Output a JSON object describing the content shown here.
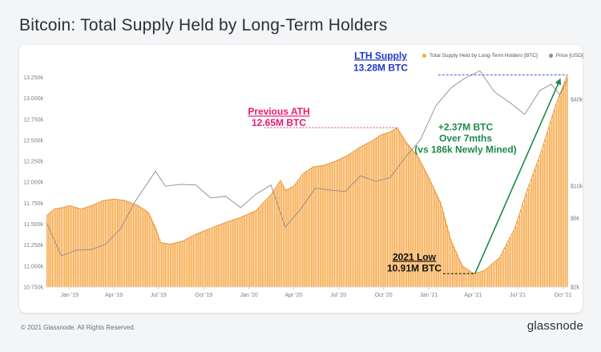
{
  "title": "Bitcoin: Total Supply Held by Long-Term Holders",
  "legend": {
    "supply_label": "Total Supply Held by Long-Term Holders [BTC]",
    "price_label": "Price [USD]"
  },
  "colors": {
    "supply": "#f7a94a",
    "supply_dark": "#e9953a",
    "price": "#8c8c8c",
    "ath": "#e8196e",
    "lth": "#1f39c6",
    "gain": "#1b8a4a",
    "low": "#111111"
  },
  "annotations": {
    "lth_title": "LTH Supply",
    "lth_value": "13.28M BTC",
    "ath_title": "Previous ATH",
    "ath_value": "12.65M BTC",
    "gain_line1": "+2.37M BTC",
    "gain_line2": "Over 7mths",
    "gain_line3": "(vs 186k Newly Mined)",
    "low_title": "2021 Low",
    "low_value": "10.91M BTC"
  },
  "footer": {
    "copyright": "© 2021 Glassnode. All Rights Reserved.",
    "brand": "glassnode"
  },
  "chart_data": {
    "type": "area",
    "title": "Bitcoin: Total Supply Held by Long-Term Holders",
    "x_range": [
      "2018-11-15",
      "2021-10-10"
    ],
    "x_ticks": [
      "Jan '19",
      "Apr '19",
      "Jul '19",
      "Oct '19",
      "Jan '20",
      "Apr '20",
      "Jul '20",
      "Oct '20",
      "Jan '21",
      "Apr '21",
      "Jul '21",
      "Oct '21"
    ],
    "y_left": {
      "label": "",
      "range": [
        10750000,
        13350000
      ],
      "ticks": [
        "10.750k",
        "11.000k",
        "11.250k",
        "11.500k",
        "11.750k",
        "12.000k",
        "12.250k",
        "12.500k",
        "12.750k",
        "13.000k",
        "13.250k"
      ]
    },
    "y_right": {
      "label": "",
      "scale": "log",
      "range": [
        2000,
        65000
      ],
      "ticks": [
        "$2k",
        "$6k",
        "$10k",
        "$40k"
      ]
    },
    "grid": false,
    "series": [
      {
        "name": "Total Supply Held by Long-Term Holders [BTC]",
        "axis": "left",
        "points": [
          [
            "2018-11-15",
            11600000
          ],
          [
            "2018-12-01",
            11680000
          ],
          [
            "2018-12-20",
            11700000
          ],
          [
            "2019-01-01",
            11720000
          ],
          [
            "2019-01-25",
            11680000
          ],
          [
            "2019-02-15",
            11720000
          ],
          [
            "2019-03-10",
            11780000
          ],
          [
            "2019-04-01",
            11800000
          ],
          [
            "2019-04-25",
            11780000
          ],
          [
            "2019-05-20",
            11720000
          ],
          [
            "2019-06-10",
            11640000
          ],
          [
            "2019-06-25",
            11450000
          ],
          [
            "2019-07-05",
            11280000
          ],
          [
            "2019-07-25",
            11260000
          ],
          [
            "2019-08-20",
            11300000
          ],
          [
            "2019-09-15",
            11380000
          ],
          [
            "2019-10-15",
            11450000
          ],
          [
            "2019-11-15",
            11520000
          ],
          [
            "2019-12-15",
            11580000
          ],
          [
            "2020-01-15",
            11660000
          ],
          [
            "2020-02-15",
            11850000
          ],
          [
            "2020-03-05",
            12020000
          ],
          [
            "2020-03-15",
            11900000
          ],
          [
            "2020-04-01",
            11950000
          ],
          [
            "2020-04-20",
            12100000
          ],
          [
            "2020-05-10",
            12180000
          ],
          [
            "2020-06-01",
            12200000
          ],
          [
            "2020-06-25",
            12250000
          ],
          [
            "2020-07-20",
            12320000
          ],
          [
            "2020-08-15",
            12420000
          ],
          [
            "2020-09-10",
            12500000
          ],
          [
            "2020-09-25",
            12560000
          ],
          [
            "2020-10-15",
            12600000
          ],
          [
            "2020-10-28",
            12650000
          ],
          [
            "2020-11-15",
            12480000
          ],
          [
            "2020-12-10",
            12300000
          ],
          [
            "2021-01-01",
            12050000
          ],
          [
            "2021-01-25",
            11750000
          ],
          [
            "2021-02-15",
            11300000
          ],
          [
            "2021-03-10",
            11000000
          ],
          [
            "2021-03-28",
            10930000
          ],
          [
            "2021-04-05",
            10910000
          ],
          [
            "2021-04-25",
            10950000
          ],
          [
            "2021-05-25",
            11100000
          ],
          [
            "2021-06-25",
            11450000
          ],
          [
            "2021-07-20",
            11900000
          ],
          [
            "2021-08-20",
            12400000
          ],
          [
            "2021-09-15",
            12900000
          ],
          [
            "2021-10-10",
            13280000
          ]
        ]
      },
      {
        "name": "Price [USD]",
        "axis": "right",
        "points": [
          [
            "2018-11-15",
            5600
          ],
          [
            "2018-12-15",
            3300
          ],
          [
            "2019-01-15",
            3600
          ],
          [
            "2019-02-15",
            3650
          ],
          [
            "2019-03-15",
            3950
          ],
          [
            "2019-04-15",
            5100
          ],
          [
            "2019-05-15",
            7900
          ],
          [
            "2019-06-25",
            12700
          ],
          [
            "2019-07-15",
            10000
          ],
          [
            "2019-08-15",
            10300
          ],
          [
            "2019-09-15",
            10200
          ],
          [
            "2019-10-15",
            8300
          ],
          [
            "2019-11-15",
            8500
          ],
          [
            "2019-12-15",
            7100
          ],
          [
            "2020-01-15",
            8800
          ],
          [
            "2020-02-15",
            10200
          ],
          [
            "2020-03-15",
            5200
          ],
          [
            "2020-04-15",
            6900
          ],
          [
            "2020-05-15",
            9700
          ],
          [
            "2020-06-15",
            9400
          ],
          [
            "2020-07-15",
            9200
          ],
          [
            "2020-08-15",
            11800
          ],
          [
            "2020-09-15",
            10800
          ],
          [
            "2020-10-15",
            11500
          ],
          [
            "2020-11-15",
            16000
          ],
          [
            "2020-12-15",
            21000
          ],
          [
            "2021-01-15",
            36000
          ],
          [
            "2021-02-15",
            48000
          ],
          [
            "2021-03-15",
            56000
          ],
          [
            "2021-04-15",
            63000
          ],
          [
            "2021-05-15",
            45000
          ],
          [
            "2021-06-15",
            38000
          ],
          [
            "2021-07-15",
            31500
          ],
          [
            "2021-08-15",
            46000
          ],
          [
            "2021-09-07",
            51000
          ],
          [
            "2021-09-25",
            43000
          ],
          [
            "2021-10-10",
            55000
          ]
        ]
      }
    ],
    "reference_lines": [
      {
        "axis": "left",
        "value": 13280000,
        "from": "2021-01-20",
        "to": "2021-10-10",
        "label": "LTH Supply 13.28M BTC"
      },
      {
        "axis": "left",
        "value": 12650000,
        "from": "2020-02-01",
        "to": "2020-10-28",
        "label": "Previous ATH 12.65M BTC"
      },
      {
        "axis": "left",
        "value": 10910000,
        "from": "2021-01-30",
        "to": "2021-04-05",
        "label": "2021 Low 10.91M BTC"
      }
    ]
  }
}
